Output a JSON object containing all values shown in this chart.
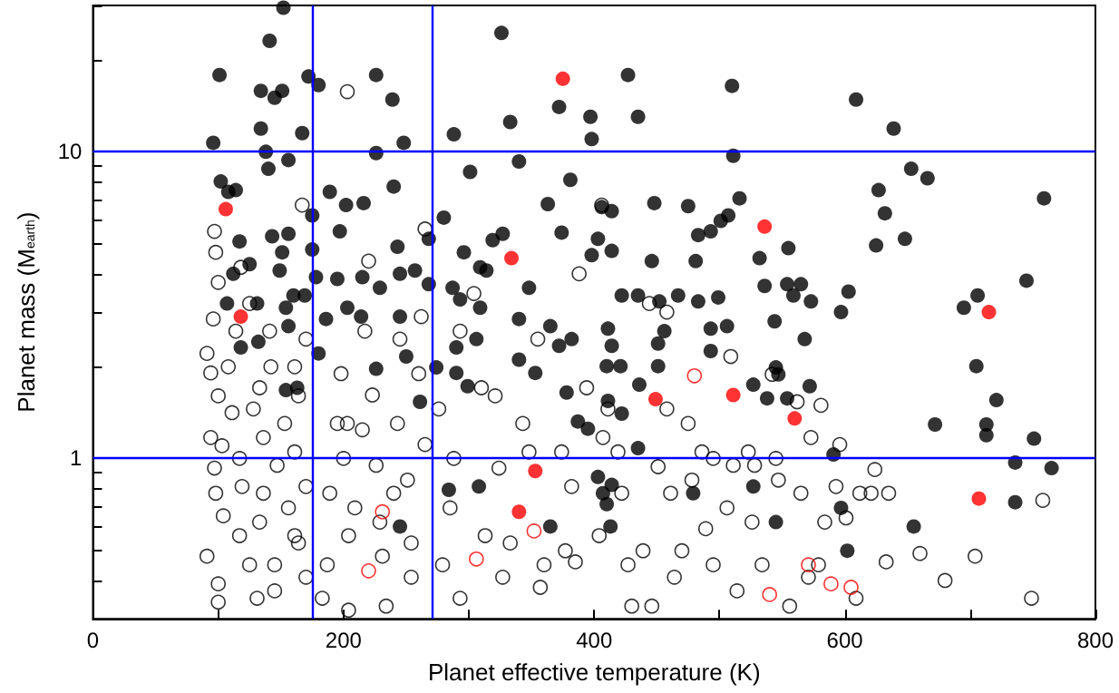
{
  "chart_data": {
    "type": "scatter",
    "xlabel": "Planet effective temperature (K)",
    "ylabel": "Planet mass (M$_{earth}$)",
    "log": "y",
    "grid": false,
    "xlim": [
      0,
      800
    ],
    "xticks": [
      0,
      {
        "value": 100,
        "label": null
      },
      200,
      {
        "value": 300,
        "label": null
      },
      400,
      {
        "value": 500,
        "label": null
      },
      600,
      {
        "value": 700,
        "label": null
      },
      800
    ],
    "ylim": [
      0.3,
      30
    ],
    "yticks": [
      {
        "value": 0.3,
        "label": null
      },
      {
        "value": 0.4,
        "label": null
      },
      {
        "value": 0.5,
        "label": null
      },
      {
        "value": 0.6,
        "label": null
      },
      {
        "value": 0.7,
        "label": null
      },
      {
        "value": 0.8,
        "label": null
      },
      {
        "value": 0.9,
        "label": null
      },
      1,
      {
        "value": 2,
        "label": null
      },
      {
        "value": 3,
        "label": null
      },
      {
        "value": 4,
        "label": null
      },
      {
        "value": 5,
        "label": null
      },
      {
        "value": 6,
        "label": null
      },
      {
        "value": 7,
        "label": null
      },
      {
        "value": 8,
        "label": null
      },
      {
        "value": 9,
        "label": null
      },
      10,
      {
        "value": 20,
        "label": null
      },
      {
        "value": 30,
        "label": null
      }
    ],
    "ref_lines": [
      {
        "axis": "x",
        "value": 175,
        "color": "#0000ff"
      },
      {
        "axis": "x",
        "value": 270,
        "color": "#0000ff"
      },
      {
        "axis": "y",
        "value": 1,
        "color": "#0000ff"
      },
      {
        "axis": "y",
        "value": 10,
        "color": "#0000ff"
      }
    ],
    "series": [
      {
        "color": "#000000",
        "marker": "open circle",
        "x": [
          97,
          98,
          100,
          96,
          91,
          94,
          100,
          94,
          103,
          97,
          98,
          104,
          91,
          100,
          100,
          108,
          114,
          111,
          117,
          119,
          117,
          125,
          131,
          128,
          133,
          136,
          136,
          133,
          142,
          145,
          147,
          153,
          156,
          161,
          164,
          164,
          167,
          170,
          170,
          161,
          145,
          141,
          125,
          118,
          170,
          161,
          183,
          187,
          189,
          195,
          198,
          200,
          204,
          204,
          209,
          215,
          217,
          203,
          220,
          223,
          226,
          231,
          234,
          240,
          243,
          245,
          251,
          254,
          260,
          262,
          265,
          265,
          254,
          203,
          229,
          276,
          279,
          285,
          288,
          293,
          293,
          304,
          310,
          313,
          321,
          324,
          333,
          327,
          343,
          348,
          355,
          357,
          360,
          374,
          377,
          382,
          385,
          388,
          394,
          404,
          407,
          406,
          411,
          419,
          422,
          427,
          430,
          439,
          444,
          446,
          451,
          458,
          458,
          461,
          464,
          470,
          475,
          478,
          486,
          489,
          495,
          495,
          506,
          509,
          511,
          514,
          523,
          526,
          528,
          534,
          542,
          545,
          547,
          556,
          562,
          565,
          571,
          573,
          579,
          581,
          584,
          593,
          596,
          601,
          609,
          612,
          621,
          624,
          633,
          635,
          660,
          680,
          704,
          749,
          758
        ],
        "values": [
          5.5,
          4.7,
          3.75,
          2.85,
          2.2,
          1.9,
          1.6,
          1.17,
          1.1,
          0.93,
          0.77,
          0.65,
          0.48,
          0.39,
          0.34,
          1.99,
          2.6,
          1.41,
          1.0,
          0.81,
          0.56,
          0.45,
          0.35,
          1.45,
          1.7,
          1.17,
          0.77,
          0.62,
          1.99,
          0.45,
          0.95,
          1.3,
          0.69,
          1.05,
          1.6,
          0.53,
          6.7,
          2.45,
          0.41,
          1.99,
          0.37,
          2.6,
          3.2,
          4.2,
          0.81,
          0.56,
          0.35,
          0.45,
          0.77,
          1.3,
          1.89,
          1.0,
          0.56,
          0.32,
          0.69,
          1.24,
          2.6,
          15.7,
          4.4,
          1.61,
          0.95,
          0.48,
          0.33,
          0.77,
          1.3,
          2.45,
          0.85,
          0.53,
          1.89,
          2.9,
          5.6,
          1.11,
          0.41,
          1.3,
          0.62,
          1.45,
          0.45,
          0.69,
          1.0,
          2.6,
          0.35,
          3.45,
          1.7,
          0.56,
          1.6,
          0.93,
          0.53,
          0.41,
          1.3,
          1.05,
          2.45,
          0.38,
          0.45,
          1.05,
          0.5,
          0.81,
          0.46,
          4.0,
          1.7,
          0.56,
          1.17,
          6.7,
          1.45,
          1.05,
          0.77,
          0.45,
          0.33,
          0.5,
          3.2,
          0.33,
          0.94,
          1.45,
          3.0,
          0.77,
          0.41,
          0.5,
          1.3,
          0.85,
          1.05,
          0.59,
          1.0,
          0.45,
          0.69,
          2.15,
          0.95,
          0.37,
          1.05,
          0.62,
          0.95,
          0.45,
          1.88,
          1.0,
          0.85,
          0.33,
          1.53,
          0.77,
          0.41,
          1.17,
          0.45,
          1.49,
          0.62,
          0.81,
          1.11,
          0.64,
          0.35,
          0.77,
          0.77,
          0.92,
          0.46,
          0.77,
          0.49,
          0.4,
          0.48,
          0.35,
          0.73
        ]
      },
      {
        "color": "#ff0000",
        "marker": "open circle",
        "x": [
          480,
          231,
          352,
          306,
          220,
          571,
          589,
          605,
          540
        ],
        "values": [
          1.86,
          0.67,
          0.58,
          0.47,
          0.43,
          0.45,
          0.39,
          0.38,
          0.36
        ]
      },
      {
        "color": "#000000",
        "marker": "circle",
        "x": [
          96,
          101,
          141,
          152,
          134,
          151,
          145,
          134,
          138,
          140,
          102,
          108,
          114,
          156,
          167,
          172,
          180,
          226,
          239,
          248,
          226,
          216,
          189,
          202,
          240,
          175,
          117,
          143,
          156,
          197,
          175,
          112,
          125,
          151,
          149,
          178,
          195,
          215,
          229,
          245,
          243,
          257,
          268,
          268,
          107,
          131,
          154,
          160,
          169,
          203,
          214,
          245,
          118,
          132,
          156,
          180,
          186,
          250,
          226,
          154,
          163,
          261,
          280,
          274,
          287,
          293,
          296,
          301,
          288,
          309,
          314,
          309,
          290,
          306,
          290,
          299,
          319,
          327,
          333,
          326,
          340,
          340,
          340,
          353,
          348,
          363,
          374,
          381,
          372,
          397,
          398,
          365,
          372,
          382,
          378,
          387,
          395,
          403,
          406,
          414,
          414,
          398,
          411,
          414,
          410,
          421,
          411,
          422,
          427,
          435,
          422,
          435,
          448,
          446,
          451,
          436,
          435,
          452,
          451,
          456,
          475,
          467,
          481,
          483,
          483,
          493,
          499,
          493,
          493,
          501,
          507,
          510,
          511,
          516,
          506,
          527,
          532,
          536,
          538,
          544,
          545,
          547,
          554,
          554,
          555,
          559,
          565,
          568,
          573,
          572,
          597,
          603,
          591,
          609,
          627,
          632,
          625,
          639,
          648,
          653,
          666,
          672,
          695,
          706,
          705,
          713,
          713,
          721,
          745,
          759,
          751,
          736,
          765,
          736,
          308,
          284,
          245,
          365,
          403,
          414,
          407,
          410,
          413,
          479,
          527,
          545,
          597,
          602,
          655
        ],
        "values": [
          10.7,
          17.8,
          23,
          29.5,
          15.8,
          15.8,
          15,
          11.9,
          10,
          8.8,
          8,
          7.4,
          7.5,
          9.4,
          11.5,
          17.6,
          16.5,
          17.8,
          14.8,
          10.7,
          9.9,
          6.8,
          7.4,
          6.7,
          7.7,
          6.2,
          5.1,
          5.3,
          5.4,
          5.5,
          4.8,
          4.0,
          4.3,
          4.7,
          4.1,
          3.9,
          3.85,
          3.9,
          3.6,
          4.0,
          4.9,
          4.1,
          5.2,
          3.7,
          3.2,
          3.2,
          3.1,
          3.4,
          3.4,
          3.1,
          2.9,
          2.9,
          2.3,
          2.4,
          2.7,
          2.2,
          2.85,
          2.15,
          1.96,
          1.67,
          1.7,
          1.53,
          6.1,
          1.98,
          3.6,
          3.3,
          4.7,
          8.6,
          11.4,
          4.2,
          4.1,
          3.1,
          2.3,
          2.45,
          1.9,
          1.72,
          5.15,
          5.4,
          12.5,
          24.4,
          9.3,
          2.85,
          2.1,
          1.9,
          3.6,
          6.75,
          5.45,
          8.1,
          14,
          13,
          11,
          2.7,
          2.33,
          2.45,
          1.64,
          1.32,
          1.25,
          5.2,
          6.6,
          6.4,
          4.75,
          4.6,
          2.65,
          2.33,
          2.0,
          2.0,
          1.54,
          1.4,
          17.8,
          13,
          3.4,
          3.4,
          6.8,
          4.4,
          2.0,
          1.74,
          1.08,
          3.25,
          2.37,
          2.6,
          6.65,
          3.4,
          4.4,
          5.35,
          3.25,
          5.5,
          3.35,
          2.65,
          2.24,
          5.95,
          6.2,
          16.4,
          9.7,
          7.05,
          2.7,
          1.74,
          4.5,
          3.65,
          1.57,
          2.8,
          1.98,
          1.88,
          1.57,
          3.7,
          4.85,
          3.4,
          3.7,
          2.45,
          3.25,
          1.72,
          3.0,
          3.5,
          1.03,
          14.8,
          7.5,
          6.3,
          4.95,
          11.9,
          5.2,
          8.8,
          8.2,
          1.29,
          3.1,
          3.4,
          2.0,
          1.29,
          1.19,
          1.55,
          3.8,
          7.05,
          1.16,
          0.97,
          0.93,
          0.72,
          0.81,
          0.79,
          0.6,
          0.6,
          0.87,
          0.82,
          0.77,
          0.71,
          0.6,
          0.77,
          0.81,
          0.62,
          0.69,
          0.5,
          0.6
        ]
      },
      {
        "color": "#ff0000",
        "marker": "circle",
        "x": [
          106,
          118,
          375,
          334,
          536,
          449,
          511,
          560,
          715,
          353,
          340,
          707
        ],
        "values": [
          6.5,
          2.9,
          17.3,
          4.5,
          5.7,
          1.56,
          1.61,
          1.35,
          3.0,
          0.91,
          0.67,
          0.74
        ]
      }
    ]
  }
}
